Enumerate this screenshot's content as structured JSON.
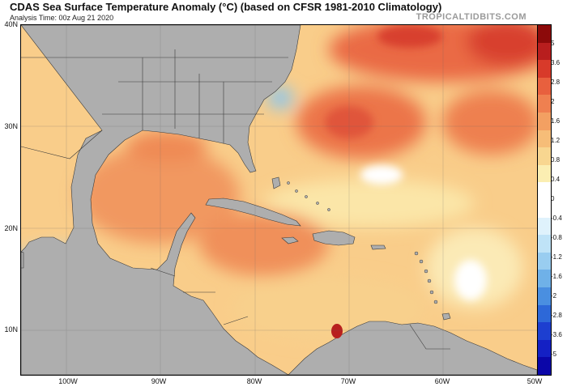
{
  "header": {
    "title": "CDAS Sea Surface Temperature Anomaly (°C) (based on CFSR 1981-2010 Climatology)",
    "analysis_time": "Analysis Time: 00z Aug 21 2020",
    "brand": "TROPICALTIDBITS.COM"
  },
  "map": {
    "lat_labels": [
      "40N",
      "30N",
      "20N",
      "10N"
    ],
    "lon_labels": [
      "100W",
      "90W",
      "80W",
      "70W",
      "60W",
      "50W"
    ],
    "land_color": "#aeaeae",
    "border_color": "#3a3a3a"
  },
  "colorbar": {
    "ticks": [
      "5",
      "3.6",
      "2.8",
      "2",
      "1.6",
      "1.2",
      "0.8",
      "0.4",
      "0",
      "-0.4",
      "-0.8",
      "-1.2",
      "-1.6",
      "-2",
      "-2.8",
      "-3.6",
      "-5"
    ],
    "colors": [
      "#8c0a0a",
      "#b81e1e",
      "#d83a2a",
      "#e8603e",
      "#ef8050",
      "#f3a062",
      "#f6bd78",
      "#f8d690",
      "#fbeeb2",
      "#ffffff",
      "#ffffff",
      "#dff2fc",
      "#bfe3f7",
      "#99cdf0",
      "#6fb1e8",
      "#4a8fe0",
      "#2d68d8",
      "#1d3fd0",
      "#1420c4",
      "#0b06a8"
    ]
  }
}
